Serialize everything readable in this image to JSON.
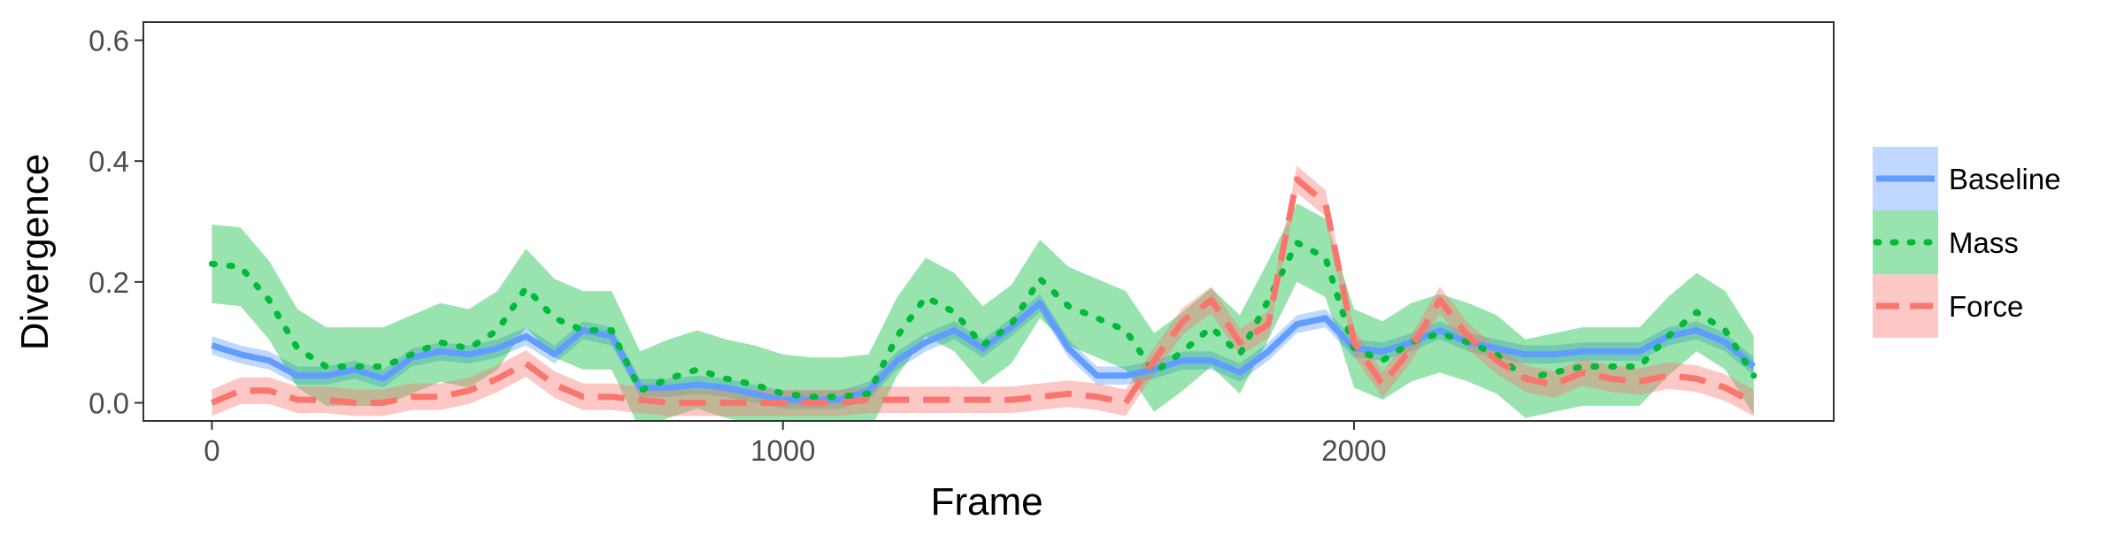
{
  "chart_data": {
    "type": "line",
    "title": "",
    "xlabel": "Frame",
    "ylabel": "Divergence",
    "xlim": [
      -120,
      2840
    ],
    "ylim": [
      -0.03,
      0.63
    ],
    "x_ticks": [
      0,
      1000,
      2000
    ],
    "x_tick_labels": [
      "0",
      "1000",
      "2000"
    ],
    "y_ticks": [
      0.0,
      0.2,
      0.4,
      0.6
    ],
    "y_tick_labels": [
      "0.0",
      "0.2",
      "0.4",
      "0.6"
    ],
    "grid": false,
    "legend_position": "right",
    "series": [
      {
        "name": "Baseline",
        "color": "#619CFF",
        "line_style": "solid",
        "points": [
          [
            0,
            0.095
          ],
          [
            50,
            0.08
          ],
          [
            100,
            0.07
          ],
          [
            150,
            0.045
          ],
          [
            200,
            0.045
          ],
          [
            250,
            0.055
          ],
          [
            300,
            0.04
          ],
          [
            350,
            0.075
          ],
          [
            400,
            0.085
          ],
          [
            450,
            0.08
          ],
          [
            500,
            0.09
          ],
          [
            550,
            0.11
          ],
          [
            600,
            0.08
          ],
          [
            650,
            0.12
          ],
          [
            700,
            0.11
          ],
          [
            750,
            0.025
          ],
          [
            800,
            0.025
          ],
          [
            850,
            0.03
          ],
          [
            900,
            0.025
          ],
          [
            950,
            0.015
          ],
          [
            1000,
            0.005
          ],
          [
            1050,
            0.005
          ],
          [
            1100,
            0.005
          ],
          [
            1150,
            0.02
          ],
          [
            1200,
            0.07
          ],
          [
            1250,
            0.1
          ],
          [
            1300,
            0.12
          ],
          [
            1350,
            0.09
          ],
          [
            1400,
            0.125
          ],
          [
            1450,
            0.165
          ],
          [
            1500,
            0.09
          ],
          [
            1550,
            0.045
          ],
          [
            1600,
            0.045
          ],
          [
            1650,
            0.055
          ],
          [
            1700,
            0.07
          ],
          [
            1750,
            0.07
          ],
          [
            1800,
            0.05
          ],
          [
            1850,
            0.085
          ],
          [
            1900,
            0.13
          ],
          [
            1950,
            0.14
          ],
          [
            2000,
            0.09
          ],
          [
            2050,
            0.085
          ],
          [
            2100,
            0.1
          ],
          [
            2150,
            0.12
          ],
          [
            2200,
            0.1
          ],
          [
            2250,
            0.09
          ],
          [
            2300,
            0.08
          ],
          [
            2350,
            0.08
          ],
          [
            2400,
            0.085
          ],
          [
            2450,
            0.085
          ],
          [
            2500,
            0.085
          ],
          [
            2550,
            0.11
          ],
          [
            2600,
            0.12
          ],
          [
            2650,
            0.1
          ],
          [
            2700,
            0.06
          ]
        ],
        "band_halfwidth": 0.015
      },
      {
        "name": "Mass",
        "color": "#00BA38",
        "line_style": "dotted",
        "points": [
          [
            0,
            0.23
          ],
          [
            50,
            0.225
          ],
          [
            100,
            0.17
          ],
          [
            150,
            0.09
          ],
          [
            200,
            0.06
          ],
          [
            250,
            0.06
          ],
          [
            300,
            0.06
          ],
          [
            350,
            0.08
          ],
          [
            400,
            0.1
          ],
          [
            450,
            0.09
          ],
          [
            500,
            0.12
          ],
          [
            550,
            0.19
          ],
          [
            600,
            0.14
          ],
          [
            650,
            0.12
          ],
          [
            700,
            0.12
          ],
          [
            750,
            0.02
          ],
          [
            800,
            0.04
          ],
          [
            850,
            0.055
          ],
          [
            900,
            0.04
          ],
          [
            950,
            0.03
          ],
          [
            1000,
            0.015
          ],
          [
            1050,
            0.01
          ],
          [
            1100,
            0.01
          ],
          [
            1150,
            0.015
          ],
          [
            1200,
            0.11
          ],
          [
            1250,
            0.175
          ],
          [
            1300,
            0.15
          ],
          [
            1350,
            0.095
          ],
          [
            1400,
            0.13
          ],
          [
            1450,
            0.205
          ],
          [
            1500,
            0.16
          ],
          [
            1550,
            0.14
          ],
          [
            1600,
            0.12
          ],
          [
            1650,
            0.05
          ],
          [
            1700,
            0.085
          ],
          [
            1750,
            0.125
          ],
          [
            1800,
            0.08
          ],
          [
            1850,
            0.17
          ],
          [
            1900,
            0.265
          ],
          [
            1950,
            0.24
          ],
          [
            2000,
            0.09
          ],
          [
            2050,
            0.07
          ],
          [
            2100,
            0.1
          ],
          [
            2150,
            0.115
          ],
          [
            2200,
            0.1
          ],
          [
            2250,
            0.08
          ],
          [
            2300,
            0.04
          ],
          [
            2350,
            0.05
          ],
          [
            2400,
            0.06
          ],
          [
            2450,
            0.06
          ],
          [
            2500,
            0.06
          ],
          [
            2550,
            0.11
          ],
          [
            2600,
            0.15
          ],
          [
            2650,
            0.12
          ],
          [
            2700,
            0.045
          ]
        ],
        "band_halfwidth": 0.065
      },
      {
        "name": "Force",
        "color": "#F8766D",
        "line_style": "dashed",
        "points": [
          [
            0,
            0.0
          ],
          [
            50,
            0.02
          ],
          [
            100,
            0.02
          ],
          [
            150,
            0.005
          ],
          [
            200,
            0.005
          ],
          [
            250,
            0.0
          ],
          [
            300,
            0.0
          ],
          [
            350,
            0.01
          ],
          [
            400,
            0.01
          ],
          [
            450,
            0.02
          ],
          [
            500,
            0.04
          ],
          [
            550,
            0.065
          ],
          [
            600,
            0.03
          ],
          [
            650,
            0.01
          ],
          [
            700,
            0.01
          ],
          [
            750,
            0.005
          ],
          [
            800,
            0.0
          ],
          [
            850,
            0.0
          ],
          [
            900,
            0.0
          ],
          [
            950,
            0.0
          ],
          [
            1000,
            0.0
          ],
          [
            1050,
            0.0
          ],
          [
            1100,
            0.0
          ],
          [
            1150,
            0.005
          ],
          [
            1200,
            0.005
          ],
          [
            1250,
            0.005
          ],
          [
            1300,
            0.005
          ],
          [
            1350,
            0.005
          ],
          [
            1400,
            0.005
          ],
          [
            1450,
            0.01
          ],
          [
            1500,
            0.015
          ],
          [
            1550,
            0.01
          ],
          [
            1600,
            0.0
          ],
          [
            1650,
            0.07
          ],
          [
            1700,
            0.135
          ],
          [
            1750,
            0.17
          ],
          [
            1800,
            0.1
          ],
          [
            1850,
            0.13
          ],
          [
            1900,
            0.37
          ],
          [
            1950,
            0.33
          ],
          [
            2000,
            0.1
          ],
          [
            2050,
            0.03
          ],
          [
            2100,
            0.09
          ],
          [
            2150,
            0.17
          ],
          [
            2200,
            0.11
          ],
          [
            2250,
            0.07
          ],
          [
            2300,
            0.04
          ],
          [
            2350,
            0.03
          ],
          [
            2400,
            0.05
          ],
          [
            2450,
            0.04
          ],
          [
            2500,
            0.035
          ],
          [
            2550,
            0.045
          ],
          [
            2600,
            0.04
          ],
          [
            2650,
            0.025
          ],
          [
            2700,
            0.0
          ]
        ],
        "band_halfwidth": 0.022
      }
    ]
  }
}
